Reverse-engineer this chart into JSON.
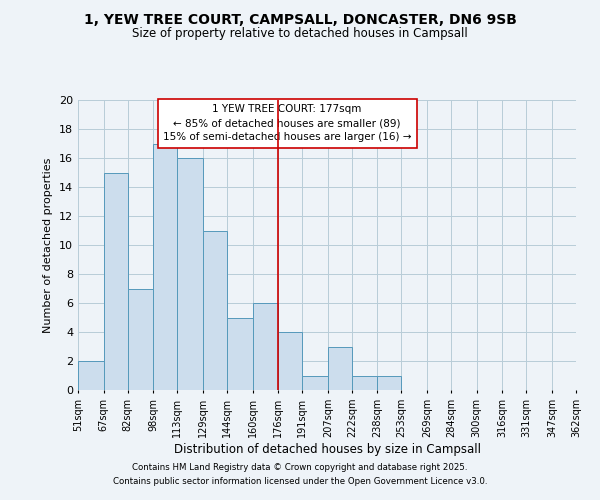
{
  "title1": "1, YEW TREE COURT, CAMPSALL, DONCASTER, DN6 9SB",
  "title2": "Size of property relative to detached houses in Campsall",
  "xlabel": "Distribution of detached houses by size in Campsall",
  "ylabel": "Number of detached properties",
  "bin_edges": [
    51,
    67,
    82,
    98,
    113,
    129,
    144,
    160,
    176,
    191,
    207,
    222,
    238,
    253,
    269,
    284,
    300,
    316,
    331,
    347,
    362
  ],
  "bin_counts": [
    2,
    15,
    7,
    17,
    16,
    11,
    5,
    6,
    4,
    1,
    3,
    1,
    1,
    0,
    0,
    0,
    0,
    0,
    0,
    0
  ],
  "bar_color": "#ccdded",
  "bar_edge_color": "#5599bb",
  "vline_x": 176,
  "vline_color": "#cc0000",
  "ann_line1": "1 YEW TREE COURT: 177sqm",
  "ann_line2": "← 85% of detached houses are smaller (89)",
  "ann_line3": "15% of semi-detached houses are larger (16) →",
  "ylim": [
    0,
    20
  ],
  "yticks": [
    0,
    2,
    4,
    6,
    8,
    10,
    12,
    14,
    16,
    18,
    20
  ],
  "tick_labels": [
    "51sqm",
    "67sqm",
    "82sqm",
    "98sqm",
    "113sqm",
    "129sqm",
    "144sqm",
    "160sqm",
    "176sqm",
    "191sqm",
    "207sqm",
    "222sqm",
    "238sqm",
    "253sqm",
    "269sqm",
    "284sqm",
    "300sqm",
    "316sqm",
    "331sqm",
    "347sqm",
    "362sqm"
  ],
  "grid_color": "#b8ccd8",
  "bg_color": "#eef3f8",
  "footnote1": "Contains HM Land Registry data © Crown copyright and database right 2025.",
  "footnote2": "Contains public sector information licensed under the Open Government Licence v3.0."
}
